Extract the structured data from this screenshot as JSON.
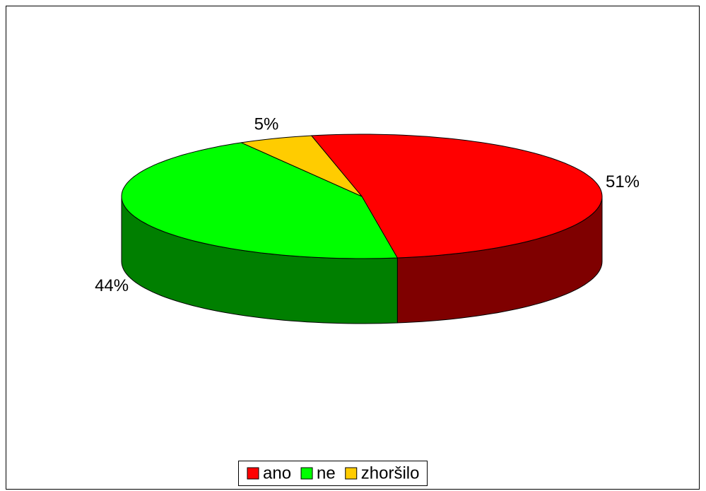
{
  "chart_data": {
    "type": "pie",
    "categories": [
      "ano",
      "ne",
      "zhoršilo"
    ],
    "values": [
      51,
      44,
      5
    ],
    "value_labels": [
      "51%",
      "44%",
      "5%"
    ],
    "colors": [
      "#ff0000",
      "#00ff00",
      "#ffcc00"
    ],
    "legend": "bottom"
  }
}
